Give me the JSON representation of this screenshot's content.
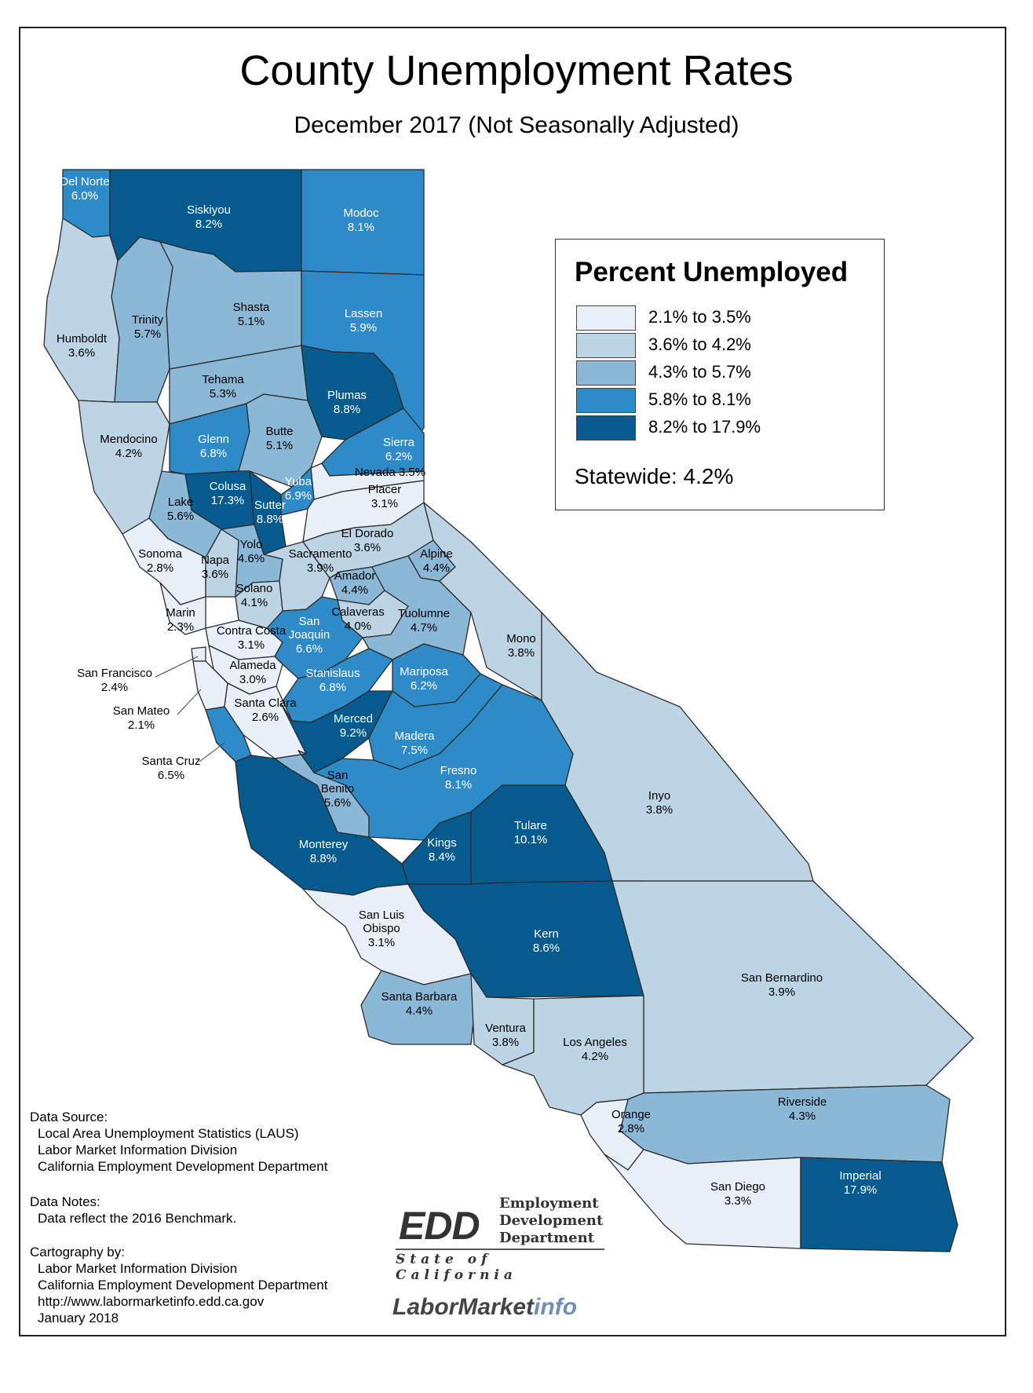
{
  "title": "County Unemployment Rates",
  "subtitle": "December 2017 (Not Seasonally Adjusted)",
  "legend": {
    "title": "Percent Unemployed",
    "classes": [
      {
        "label": "2.1% to 3.5%",
        "color": "#e8eff6"
      },
      {
        "label": "3.6% to 4.2%",
        "color": "#bdd4e5"
      },
      {
        "label": "4.3% to 5.7%",
        "color": "#8cb8d8"
      },
      {
        "label": "5.8% to 8.1%",
        "color": "#2e8bc7"
      },
      {
        "label": "8.2% to 17.9%",
        "color": "#055b8e"
      }
    ],
    "statewide": "Statewide: 4.2%"
  },
  "counties": [
    {
      "name": "Del Norte",
      "rate": "6.0%",
      "value": 6.0
    },
    {
      "name": "Siskiyou",
      "rate": "8.2%",
      "value": 8.2
    },
    {
      "name": "Modoc",
      "rate": "8.1%",
      "value": 8.1
    },
    {
      "name": "Humboldt",
      "rate": "3.6%",
      "value": 3.6
    },
    {
      "name": "Trinity",
      "rate": "5.7%",
      "value": 5.7
    },
    {
      "name": "Shasta",
      "rate": "5.1%",
      "value": 5.1
    },
    {
      "name": "Lassen",
      "rate": "5.9%",
      "value": 5.9
    },
    {
      "name": "Tehama",
      "rate": "5.3%",
      "value": 5.3
    },
    {
      "name": "Plumas",
      "rate": "8.8%",
      "value": 8.8
    },
    {
      "name": "Mendocino",
      "rate": "4.2%",
      "value": 4.2
    },
    {
      "name": "Glenn",
      "rate": "6.8%",
      "value": 6.8
    },
    {
      "name": "Butte",
      "rate": "5.1%",
      "value": 5.1
    },
    {
      "name": "Sierra",
      "rate": "6.2%",
      "value": 6.2
    },
    {
      "name": "Nevada",
      "rate": "3.5%",
      "value": 3.5
    },
    {
      "name": "Colusa",
      "rate": "17.3%",
      "value": 17.3
    },
    {
      "name": "Yuba",
      "rate": "6.9%",
      "value": 6.9
    },
    {
      "name": "Sutter",
      "rate": "8.8%",
      "value": 8.8
    },
    {
      "name": "Placer",
      "rate": "3.1%",
      "value": 3.1
    },
    {
      "name": "Lake",
      "rate": "5.6%",
      "value": 5.6
    },
    {
      "name": "Sonoma",
      "rate": "2.8%",
      "value": 2.8
    },
    {
      "name": "Napa",
      "rate": "3.6%",
      "value": 3.6
    },
    {
      "name": "Yolo",
      "rate": "4.6%",
      "value": 4.6
    },
    {
      "name": "Sacramento",
      "rate": "3.9%",
      "value": 3.9
    },
    {
      "name": "El Dorado",
      "rate": "3.6%",
      "value": 3.6
    },
    {
      "name": "Alpine",
      "rate": "4.4%",
      "value": 4.4
    },
    {
      "name": "Amador",
      "rate": "4.4%",
      "value": 4.4
    },
    {
      "name": "Solano",
      "rate": "4.1%",
      "value": 4.1
    },
    {
      "name": "Marin",
      "rate": "2.3%",
      "value": 2.3
    },
    {
      "name": "Calaveras",
      "rate": "4.0%",
      "value": 4.0
    },
    {
      "name": "Tuolumne",
      "rate": "4.7%",
      "value": 4.7
    },
    {
      "name": "Contra Costa",
      "rate": "3.1%",
      "value": 3.1
    },
    {
      "name": "San Joaquin",
      "rate": "6.6%",
      "value": 6.6
    },
    {
      "name": "Mono",
      "rate": "3.8%",
      "value": 3.8
    },
    {
      "name": "San Francisco",
      "rate": "2.4%",
      "value": 2.4
    },
    {
      "name": "Alameda",
      "rate": "3.0%",
      "value": 3.0
    },
    {
      "name": "Stanislaus",
      "rate": "6.8%",
      "value": 6.8
    },
    {
      "name": "Mariposa",
      "rate": "6.2%",
      "value": 6.2
    },
    {
      "name": "San Mateo",
      "rate": "2.1%",
      "value": 2.1
    },
    {
      "name": "Santa Clara",
      "rate": "2.6%",
      "value": 2.6
    },
    {
      "name": "Merced",
      "rate": "9.2%",
      "value": 9.2
    },
    {
      "name": "Madera",
      "rate": "7.5%",
      "value": 7.5
    },
    {
      "name": "Santa Cruz",
      "rate": "6.5%",
      "value": 6.5
    },
    {
      "name": "San Benito",
      "rate": "5.6%",
      "value": 5.6
    },
    {
      "name": "Fresno",
      "rate": "8.1%",
      "value": 8.1
    },
    {
      "name": "Inyo",
      "rate": "3.8%",
      "value": 3.8
    },
    {
      "name": "Tulare",
      "rate": "10.1%",
      "value": 10.1
    },
    {
      "name": "Kings",
      "rate": "8.4%",
      "value": 8.4
    },
    {
      "name": "Monterey",
      "rate": "8.8%",
      "value": 8.8
    },
    {
      "name": "San Luis Obispo",
      "rate": "3.1%",
      "value": 3.1
    },
    {
      "name": "Kern",
      "rate": "8.6%",
      "value": 8.6
    },
    {
      "name": "San Bernardino",
      "rate": "3.9%",
      "value": 3.9
    },
    {
      "name": "Santa Barbara",
      "rate": "4.4%",
      "value": 4.4
    },
    {
      "name": "Ventura",
      "rate": "3.8%",
      "value": 3.8
    },
    {
      "name": "Los Angeles",
      "rate": "4.2%",
      "value": 4.2
    },
    {
      "name": "Riverside",
      "rate": "4.3%",
      "value": 4.3
    },
    {
      "name": "Orange",
      "rate": "2.8%",
      "value": 2.8
    },
    {
      "name": "San Diego",
      "rate": "3.3%",
      "value": 3.3
    },
    {
      "name": "Imperial",
      "rate": "17.9%",
      "value": 17.9
    }
  ],
  "data_source": {
    "heading": "Data Source:",
    "lines": [
      "Local Area Unemployment Statistics (LAUS)",
      "Labor Market Information Division",
      "California Employment Development Department"
    ]
  },
  "data_notes": {
    "heading": "Data Notes:",
    "lines": [
      "Data reflect the 2016 Benchmark."
    ]
  },
  "cartography": {
    "heading": "Cartography by:",
    "lines": [
      "Labor Market Information Division",
      "California Employment Development Department",
      "http://www.labormarketinfo.edd.ca.gov",
      "January 2018"
    ]
  },
  "logos": {
    "edd_mark": "EDD",
    "edd_name_lines": [
      "Employment",
      "Development",
      "Department"
    ],
    "edd_state": "State of California",
    "lmi_main": "LaborMarket",
    "lmi_suffix": "info"
  }
}
